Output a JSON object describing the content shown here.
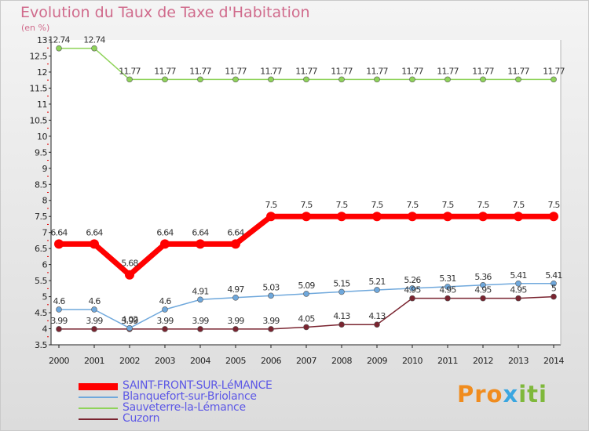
{
  "title": "Evolution du Taux de Taxe d'Habitation",
  "unit_label": "(en %)",
  "logo": {
    "part1": "Pro",
    "part2": "x",
    "part3": "iti"
  },
  "chart_data": {
    "type": "line",
    "title": "Evolution du Taux de Taxe d'Habitation",
    "ylabel": "(en %)",
    "x": [
      2000,
      2001,
      2002,
      2003,
      2004,
      2005,
      2006,
      2007,
      2008,
      2009,
      2010,
      2011,
      2012,
      2013,
      2014
    ],
    "ylim": [
      3.5,
      13
    ],
    "ytick_step": 0.5,
    "grid": false,
    "legend_position": "bottom-left",
    "series": [
      {
        "name": "SAINT-FRONT-SUR-LéMANCE",
        "color": "#ff0000",
        "values": [
          6.64,
          6.64,
          5.68,
          6.64,
          6.64,
          6.64,
          7.5,
          7.5,
          7.5,
          7.5,
          7.5,
          7.5,
          7.5,
          7.5,
          7.5
        ],
        "labels": [
          "6.64",
          "6.64",
          "5.68",
          "6.64",
          "6.64",
          "6.64",
          "7.5",
          "7.5",
          "7.5",
          "7.5",
          "7.5",
          "7.5",
          "7.5",
          "7.5",
          "7.5"
        ]
      },
      {
        "name": "Blanquefort-sur-Briolance",
        "color": "#6fa8dc",
        "values": [
          4.6,
          4.6,
          4.02,
          4.6,
          4.91,
          4.97,
          5.03,
          5.09,
          5.15,
          5.21,
          5.26,
          5.31,
          5.36,
          5.41,
          5.41
        ],
        "labels": [
          "4.6",
          "4.6",
          "4.02",
          "4.6",
          "4.91",
          "4.97",
          "5.03",
          "5.09",
          "5.15",
          "5.21",
          "5.26",
          "5.31",
          "5.36",
          "5.41",
          "5.41"
        ]
      },
      {
        "name": "Sauveterre-la-Lémance",
        "color": "#8fd35a",
        "values": [
          12.74,
          12.74,
          11.77,
          11.77,
          11.77,
          11.77,
          11.77,
          11.77,
          11.77,
          11.77,
          11.77,
          11.77,
          11.77,
          11.77,
          11.77
        ],
        "labels": [
          "12.74",
          "12.74",
          "11.77",
          "11.77",
          "11.77",
          "11.77",
          "11.77",
          "11.77",
          "11.77",
          "11.77",
          "11.77",
          "11.77",
          "11.77",
          "11.77",
          "11.77"
        ]
      },
      {
        "name": "Cuzorn",
        "color": "#7a2430",
        "values": [
          3.99,
          3.99,
          3.99,
          3.99,
          3.99,
          3.99,
          3.99,
          4.05,
          4.13,
          4.13,
          4.95,
          4.95,
          4.95,
          4.95,
          5
        ],
        "labels": [
          "3.99",
          "3.99",
          "3.99",
          "3.99",
          "3.99",
          "3.99",
          "3.99",
          "4.05",
          "4.13",
          "4.13",
          "4.95",
          "4.95",
          "4.95",
          "4.95",
          "5"
        ]
      }
    ]
  }
}
